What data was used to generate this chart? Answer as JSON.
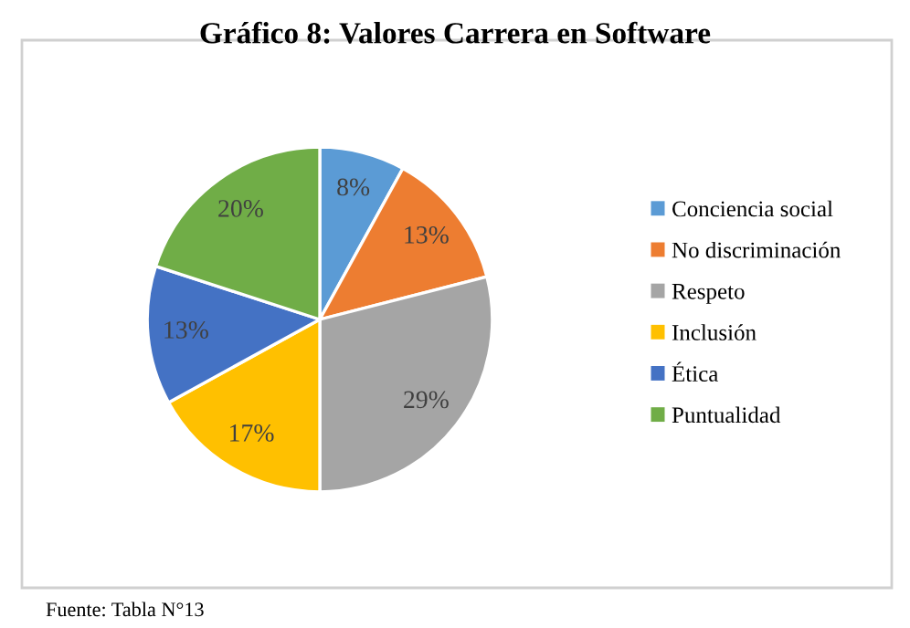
{
  "chart_data": {
    "type": "pie",
    "title": "Gráfico 8: Valores Carrera en Software",
    "categories": [
      "Conciencia social",
      "No discriminación",
      "Respeto",
      "Inclusión",
      "Ética",
      "Puntualidad"
    ],
    "values": [
      8,
      13,
      29,
      17,
      13,
      20
    ],
    "colors": [
      "#5b9bd5",
      "#ed7d31",
      "#a5a5a5",
      "#ffc000",
      "#4472c4",
      "#70ad47"
    ],
    "value_labels": [
      "8%",
      "13%",
      "29%",
      "17%",
      "13%",
      "20%"
    ],
    "legend": "right",
    "annotations": [
      "Fuente: Tabla N°13"
    ]
  }
}
